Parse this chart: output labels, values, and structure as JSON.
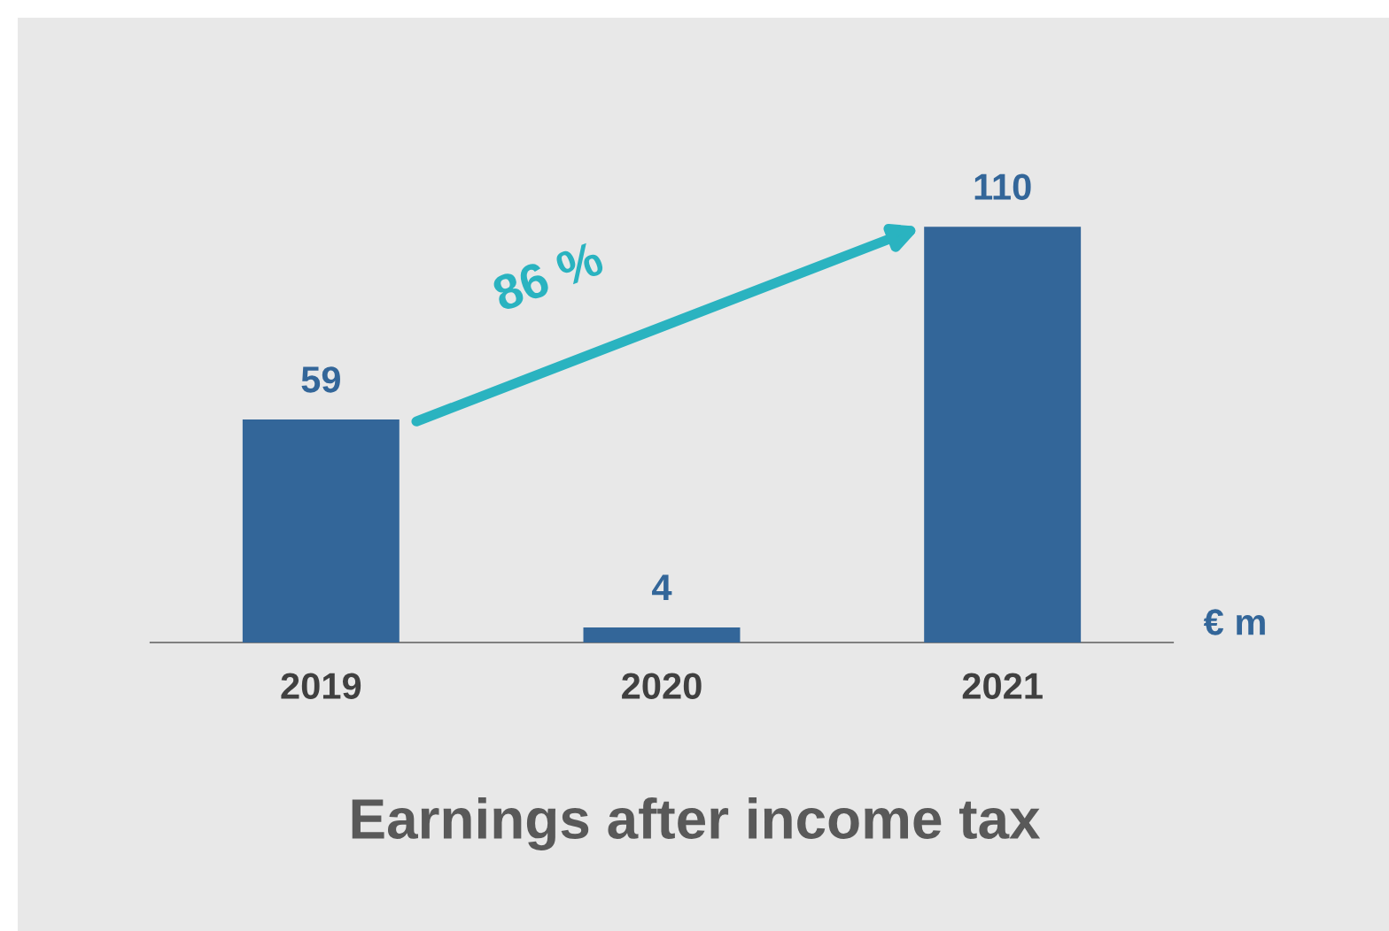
{
  "chart_data": {
    "type": "bar",
    "title": "Earnings after income tax",
    "ylabel": "€ m",
    "categories": [
      "2019",
      "2020",
      "2021"
    ],
    "values": [
      59,
      4,
      110
    ],
    "color": "#336699",
    "data_labels": true,
    "grid": false,
    "annotations": [
      "86 %"
    ]
  }
}
